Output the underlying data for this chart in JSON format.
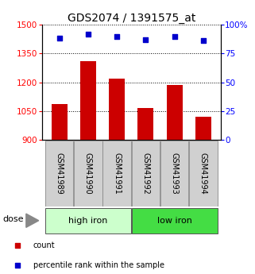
{
  "title": "GDS2074 / 1391575_at",
  "categories": [
    "GSM41989",
    "GSM41990",
    "GSM41991",
    "GSM41992",
    "GSM41993",
    "GSM41994"
  ],
  "bar_values": [
    1085,
    1310,
    1220,
    1065,
    1185,
    1020
  ],
  "bar_color": "#cc0000",
  "dot_values": [
    88,
    92,
    90,
    87,
    90,
    86
  ],
  "dot_color": "#0000cc",
  "ylim_left": [
    900,
    1500
  ],
  "ylim_right": [
    0,
    100
  ],
  "yticks_left": [
    900,
    1050,
    1200,
    1350,
    1500
  ],
  "yticks_right": [
    0,
    25,
    50,
    75,
    100
  ],
  "ytick_labels_right": [
    "0",
    "25",
    "50",
    "75",
    "100%"
  ],
  "groups": [
    {
      "label": "high iron",
      "indices": [
        0,
        1,
        2
      ],
      "color": "#ccffcc"
    },
    {
      "label": "low iron",
      "indices": [
        3,
        4,
        5
      ],
      "color": "#44dd44"
    }
  ],
  "legend_items": [
    {
      "label": "count",
      "color": "#cc0000",
      "marker": "s"
    },
    {
      "label": "percentile rank within the sample",
      "color": "#0000cc",
      "marker": "s"
    }
  ],
  "dose_label": "dose",
  "background_color": "#ffffff",
  "title_fontsize": 10,
  "tick_fontsize": 7.5,
  "label_fontsize": 7,
  "group_fontsize": 8,
  "legend_fontsize": 7,
  "bar_width": 0.55
}
